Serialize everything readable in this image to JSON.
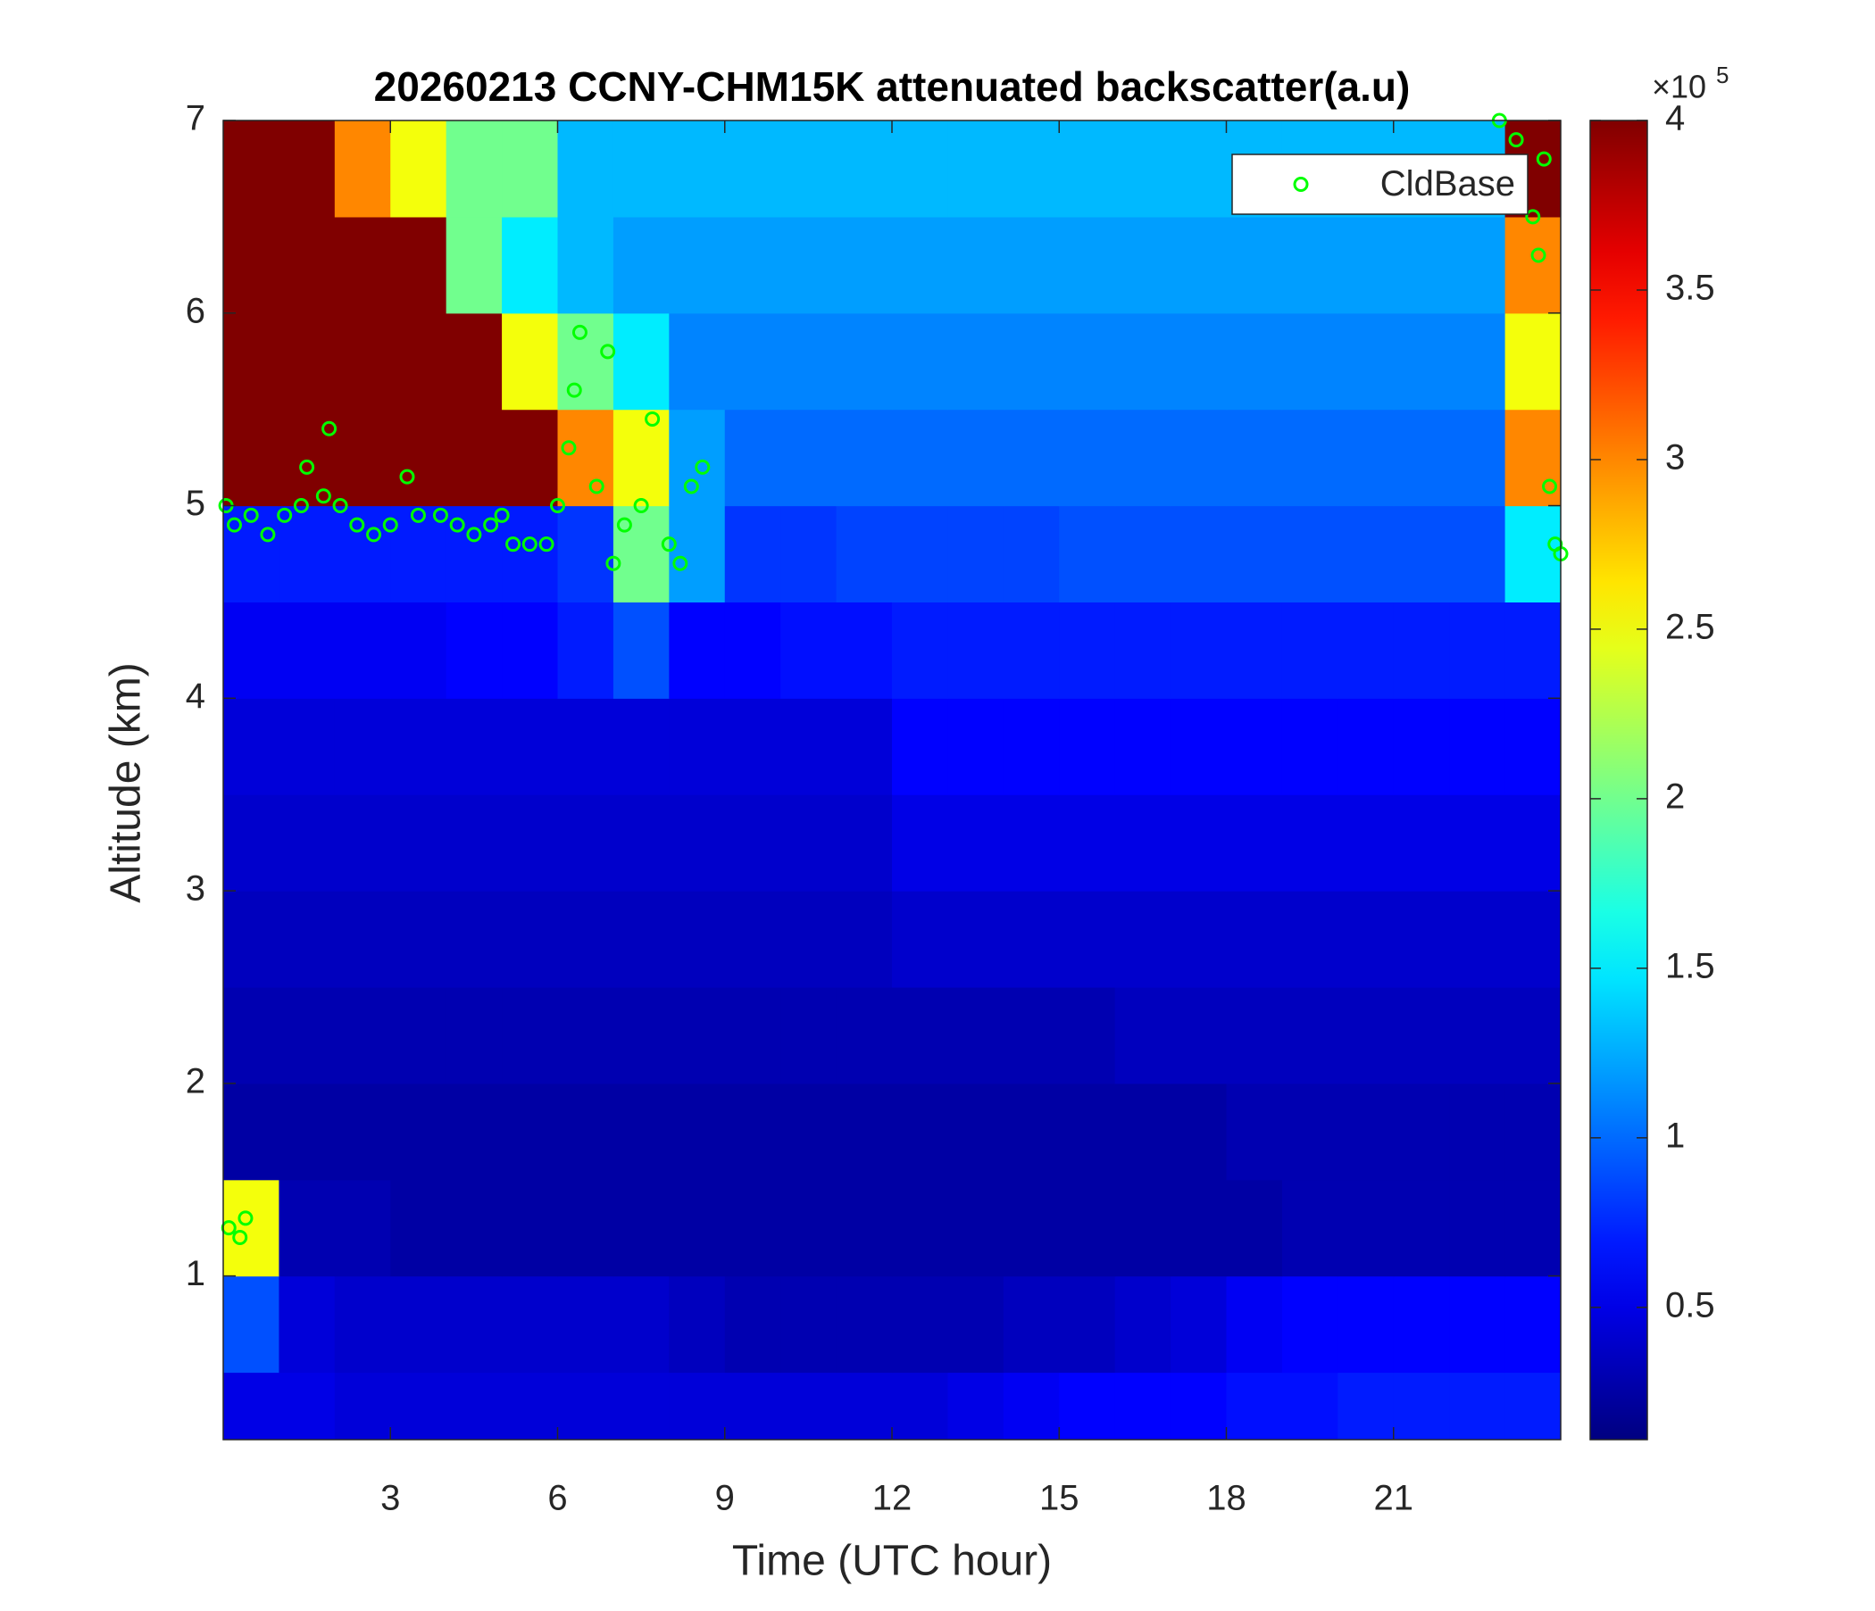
{
  "chart_data": {
    "type": "heatmap",
    "title": "20260213 CCNY-CHM15K attenuated backscatter(a.u)",
    "x_label": "Time (UTC hour)",
    "y_label": "Altitude (km)",
    "xlim": [
      0,
      24
    ],
    "ylim": [
      0.15,
      7
    ],
    "xticks": [
      3,
      6,
      9,
      12,
      15,
      18,
      21
    ],
    "yticks": [
      1,
      2,
      3,
      4,
      5,
      6,
      7
    ],
    "x": [
      0.5,
      1.5,
      2.5,
      3.5,
      4.5,
      5.5,
      6.5,
      7.5,
      8.5,
      9.5,
      10.5,
      11.5,
      12.5,
      13.5,
      14.5,
      15.5,
      16.5,
      17.5,
      18.5,
      19.5,
      20.5,
      21.5,
      22.5,
      23.5
    ],
    "y": [
      0.25,
      0.75,
      1.25,
      1.75,
      2.25,
      2.75,
      3.25,
      3.75,
      4.25,
      4.75,
      5.25,
      5.75,
      6.25,
      6.75
    ],
    "z": [
      [
        0.5,
        0.5,
        0.45,
        0.45,
        0.45,
        0.45,
        0.45,
        0.45,
        0.45,
        0.45,
        0.45,
        0.45,
        0.45,
        0.5,
        0.55,
        0.6,
        0.6,
        0.6,
        0.65,
        0.65,
        0.7,
        0.7,
        0.7,
        0.7
      ],
      [
        0.9,
        0.45,
        0.4,
        0.4,
        0.4,
        0.4,
        0.4,
        0.4,
        0.35,
        0.3,
        0.3,
        0.3,
        0.3,
        0.3,
        0.35,
        0.35,
        0.4,
        0.45,
        0.55,
        0.6,
        0.6,
        0.6,
        0.6,
        0.6
      ],
      [
        2.5,
        0.3,
        0.3,
        0.25,
        0.25,
        0.25,
        0.25,
        0.25,
        0.25,
        0.25,
        0.25,
        0.25,
        0.25,
        0.25,
        0.25,
        0.25,
        0.25,
        0.25,
        0.25,
        0.3,
        0.3,
        0.3,
        0.3,
        0.3
      ],
      [
        0.25,
        0.25,
        0.25,
        0.25,
        0.25,
        0.25,
        0.25,
        0.25,
        0.25,
        0.25,
        0.25,
        0.25,
        0.25,
        0.25,
        0.25,
        0.25,
        0.25,
        0.25,
        0.3,
        0.3,
        0.3,
        0.3,
        0.3,
        0.3
      ],
      [
        0.3,
        0.3,
        0.3,
        0.3,
        0.3,
        0.3,
        0.3,
        0.3,
        0.3,
        0.3,
        0.3,
        0.3,
        0.3,
        0.3,
        0.3,
        0.3,
        0.35,
        0.35,
        0.35,
        0.35,
        0.35,
        0.35,
        0.35,
        0.35
      ],
      [
        0.35,
        0.35,
        0.35,
        0.35,
        0.35,
        0.35,
        0.35,
        0.35,
        0.35,
        0.35,
        0.35,
        0.35,
        0.4,
        0.4,
        0.4,
        0.4,
        0.4,
        0.4,
        0.4,
        0.4,
        0.4,
        0.4,
        0.4,
        0.4
      ],
      [
        0.4,
        0.4,
        0.4,
        0.4,
        0.4,
        0.4,
        0.4,
        0.4,
        0.4,
        0.4,
        0.4,
        0.4,
        0.5,
        0.5,
        0.5,
        0.5,
        0.5,
        0.5,
        0.5,
        0.5,
        0.5,
        0.5,
        0.5,
        0.5
      ],
      [
        0.45,
        0.45,
        0.45,
        0.45,
        0.45,
        0.45,
        0.45,
        0.45,
        0.45,
        0.45,
        0.45,
        0.45,
        0.6,
        0.6,
        0.6,
        0.6,
        0.6,
        0.6,
        0.6,
        0.6,
        0.6,
        0.6,
        0.6,
        0.6
      ],
      [
        0.55,
        0.55,
        0.55,
        0.55,
        0.6,
        0.6,
        0.7,
        0.9,
        0.6,
        0.6,
        0.65,
        0.65,
        0.7,
        0.7,
        0.7,
        0.7,
        0.7,
        0.7,
        0.7,
        0.7,
        0.7,
        0.7,
        0.7,
        0.7
      ],
      [
        0.7,
        0.7,
        0.7,
        0.7,
        0.7,
        0.7,
        0.8,
        2,
        1.2,
        0.8,
        0.8,
        0.85,
        0.85,
        0.85,
        0.85,
        0.9,
        0.9,
        0.9,
        0.9,
        0.9,
        0.9,
        0.9,
        0.9,
        1.5
      ],
      [
        4,
        4,
        4,
        4,
        4,
        4,
        3,
        2.5,
        1.2,
        1,
        1,
        1,
        1,
        1,
        1,
        1,
        1,
        1,
        1,
        1,
        1,
        1,
        1,
        3
      ],
      [
        4,
        4,
        4,
        4,
        4,
        2.5,
        2,
        1.5,
        1.1,
        1.1,
        1.1,
        1.1,
        1.1,
        1.1,
        1.1,
        1.1,
        1.1,
        1.1,
        1.1,
        1.1,
        1.1,
        1.1,
        1.1,
        2.5
      ],
      [
        4,
        4,
        4,
        4,
        2,
        1.5,
        1.3,
        1.2,
        1.2,
        1.2,
        1.2,
        1.2,
        1.2,
        1.2,
        1.2,
        1.2,
        1.2,
        1.2,
        1.2,
        1.2,
        1.2,
        1.2,
        1.2,
        3
      ],
      [
        4,
        4,
        3,
        2.5,
        2,
        2,
        1.3,
        1.3,
        1.3,
        1.3,
        1.3,
        1.3,
        1.3,
        1.3,
        1.3,
        1.3,
        1.3,
        1.3,
        1.3,
        1.3,
        1.3,
        1.3,
        1.3,
        4
      ]
    ],
    "colormap": "jet",
    "clim": [
      0.11,
      4
    ],
    "cticks": [
      0.5,
      1,
      1.5,
      2,
      2.5,
      3,
      3.5,
      4
    ],
    "colorbar_multiplier": "×10",
    "colorbar_exponent": "5",
    "legend": "upper right",
    "overlay": {
      "type": "scatter",
      "name": "CldBase",
      "color": "#00ff00",
      "x": [
        0.05,
        0.2,
        0.5,
        0.8,
        1.1,
        1.4,
        1.5,
        1.8,
        1.9,
        2.1,
        2.4,
        2.7,
        3.0,
        3.3,
        3.5,
        3.9,
        4.2,
        4.5,
        4.8,
        5.0,
        5.2,
        5.5,
        5.8,
        6.0,
        6.2,
        6.3,
        6.4,
        6.7,
        6.9,
        7.0,
        7.2,
        7.5,
        7.7,
        8.0,
        8.2,
        8.4,
        8.6,
        0.1,
        0.3,
        0.4,
        22.9,
        23.2,
        23.5,
        23.6,
        23.7,
        23.8,
        23.9,
        24.0
      ],
      "y": [
        5.0,
        4.9,
        4.95,
        4.85,
        4.95,
        5.0,
        5.2,
        5.05,
        5.4,
        5.0,
        4.9,
        4.85,
        4.9,
        5.15,
        4.95,
        4.95,
        4.9,
        4.85,
        4.9,
        4.95,
        4.8,
        4.8,
        4.8,
        5.0,
        5.3,
        5.6,
        5.9,
        5.1,
        5.8,
        4.7,
        4.9,
        5.0,
        5.45,
        4.8,
        4.7,
        5.1,
        5.2,
        1.25,
        1.2,
        1.3,
        7.0,
        6.9,
        6.5,
        6.3,
        6.8,
        5.1,
        4.8,
        4.75
      ]
    }
  }
}
